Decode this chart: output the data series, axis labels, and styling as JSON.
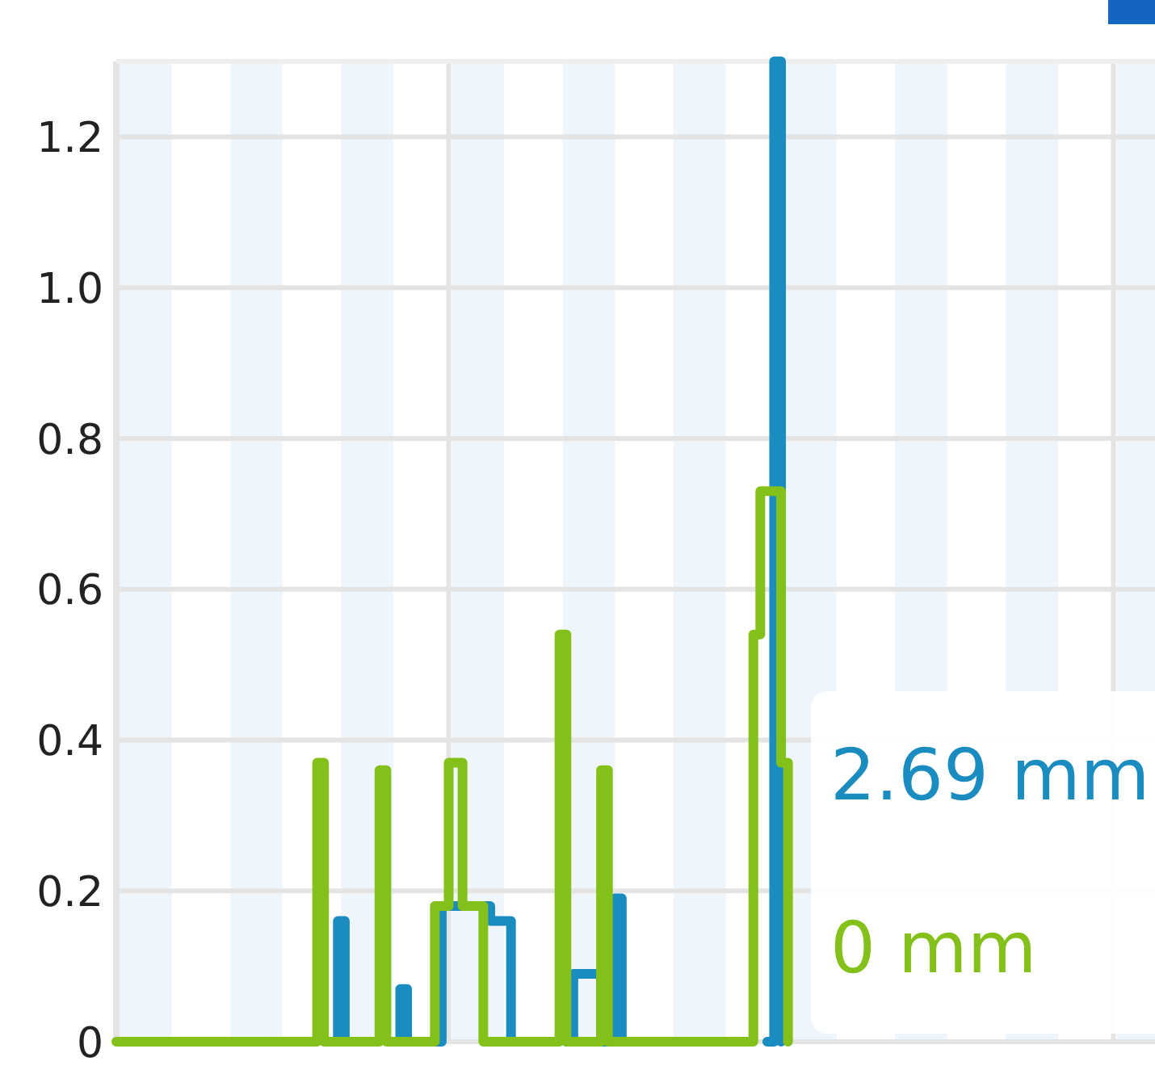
{
  "chart_data": {
    "type": "step",
    "categories": [
      null,
      null,
      null,
      null,
      null,
      null,
      null,
      null,
      null,
      null,
      null,
      null,
      null,
      null,
      null,
      null,
      null,
      null,
      null,
      null,
      null,
      null,
      null,
      null,
      null,
      null,
      null,
      null,
      null,
      null,
      null,
      null,
      null,
      null,
      null,
      null,
      null,
      null,
      null,
      null,
      null,
      null,
      null,
      null,
      null,
      null,
      null,
      null,
      null,
      null,
      null,
      null,
      null,
      null,
      null,
      null,
      null,
      null,
      null,
      null,
      null,
      null,
      null,
      null,
      null,
      null,
      null,
      null,
      null,
      null,
      null,
      null,
      null,
      null,
      null,
      null,
      null,
      null,
      null,
      null,
      null,
      null,
      null,
      null,
      null,
      null,
      null,
      null,
      null,
      null,
      null,
      null,
      null,
      null,
      null,
      null,
      null,
      null
    ],
    "ylim": [
      0,
      1.3
    ],
    "yticks": [
      0,
      0.2,
      0.4,
      0.6,
      0.8,
      {
        "value": 1.0,
        "label": "1.0"
      },
      1.2
    ],
    "tick_labels": "y",
    "grid": true,
    "marker": "none",
    "line_style": "solid",
    "series": [
      {
        "color": "#1a8cbf",
        "values": [
          null,
          null,
          null,
          null,
          null,
          null,
          null,
          null,
          null,
          null,
          null,
          null,
          null,
          null,
          null,
          null,
          null,
          null,
          null,
          null,
          null,
          null,
          null,
          null,
          null,
          null,
          null,
          null,
          null,
          null,
          null,
          0,
          0.16,
          0,
          null,
          null,
          null,
          null,
          null,
          null,
          0,
          0.07,
          0,
          null,
          null,
          null,
          0,
          0.18,
          0.18,
          0.18,
          0.18,
          0.18,
          0.18,
          0.18,
          0.16,
          0.16,
          0.16,
          0,
          null,
          null,
          null,
          null,
          null,
          null,
          null,
          0,
          0.09,
          0.09,
          0.09,
          0.09,
          0,
          0,
          0.19,
          0,
          null,
          null,
          null,
          null,
          null,
          null,
          null,
          null,
          null,
          null,
          null,
          null,
          null,
          null,
          null,
          null,
          null,
          null,
          null,
          null,
          0,
          1.3,
          0,
          null
        ]
      },
      {
        "color": "#84c01a",
        "values": [
          0,
          0,
          0,
          0,
          0,
          0,
          0,
          0,
          0,
          0,
          0,
          0,
          0,
          0,
          0,
          0,
          0,
          0,
          0,
          0,
          0,
          0,
          0,
          0,
          0,
          0,
          0,
          0,
          0,
          0.37,
          0,
          0,
          0,
          0,
          0,
          0,
          0,
          0,
          0.36,
          0,
          0,
          0,
          0,
          0,
          0,
          0,
          0.18,
          0.18,
          0.37,
          0.37,
          0.18,
          0.18,
          0.18,
          0,
          0,
          0,
          0,
          0,
          0,
          0,
          0,
          0,
          0,
          0,
          0.54,
          0,
          0,
          0,
          0,
          0,
          0.36,
          0,
          0,
          0,
          0,
          0,
          0,
          0,
          0,
          0,
          0,
          0,
          0,
          0,
          0,
          0,
          0,
          0,
          0,
          0,
          0,
          0,
          0.54,
          0.73,
          0.73,
          0.73,
          0.37,
          0
        ]
      }
    ],
    "annotations": [
      "2.69 mm",
      "0 mm"
    ]
  }
}
